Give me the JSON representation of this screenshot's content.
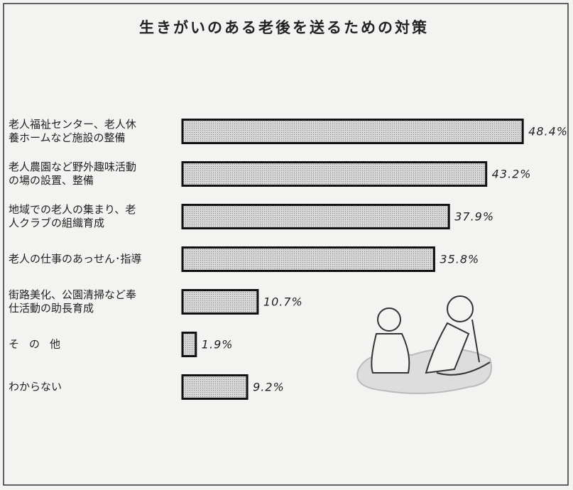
{
  "chart_data": {
    "type": "bar",
    "orientation": "horizontal",
    "title": "生きがいのある老後を送るための対策",
    "categories": [
      "老人福祉センター、老人休\n養ホームなど施設の整備",
      "老人農園など野外趣味活動\nの場の設置、整備",
      "地域での老人の集まり、老\n人クラブの組織育成",
      "老人の仕事のあっせん･指導",
      "街路美化、公園清掃など奉\n仕活動の助長育成",
      "その他",
      "わからない"
    ],
    "values": [
      48.4,
      43.2,
      37.9,
      35.8,
      10.7,
      1.9,
      9.2
    ],
    "value_labels": [
      "48.4%",
      "43.2%",
      "37.9%",
      "35.8%",
      "10.7%",
      "1.9%",
      "9.2%"
    ],
    "color": "#c4c4c4"
  }
}
